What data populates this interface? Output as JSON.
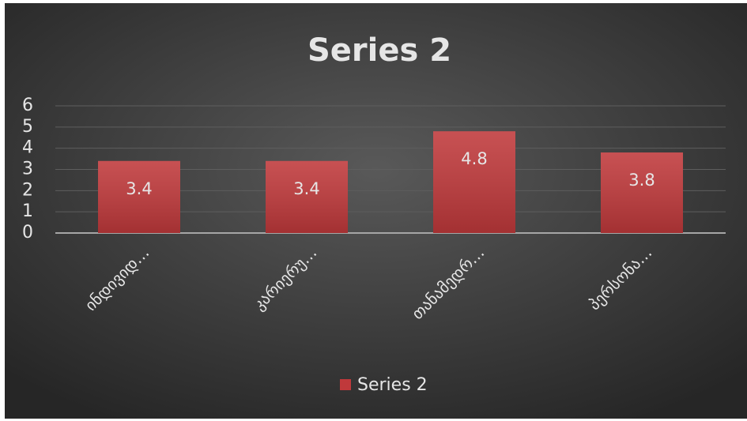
{
  "chart_data": {
    "type": "bar",
    "title": "Series 2",
    "categories": [
      "ინდივიდ…",
      "კარიერუ…",
      "თანამედრ…",
      "პერსონა…"
    ],
    "series": [
      {
        "name": "Series 2",
        "color": "#c0393b",
        "values": [
          3.4,
          3.4,
          4.8,
          3.8
        ]
      }
    ],
    "ylim": [
      0,
      6
    ],
    "yticks": [
      0,
      1,
      2,
      3,
      4,
      5,
      6
    ],
    "grid": true,
    "legend": "bottom",
    "data_labels": true
  }
}
